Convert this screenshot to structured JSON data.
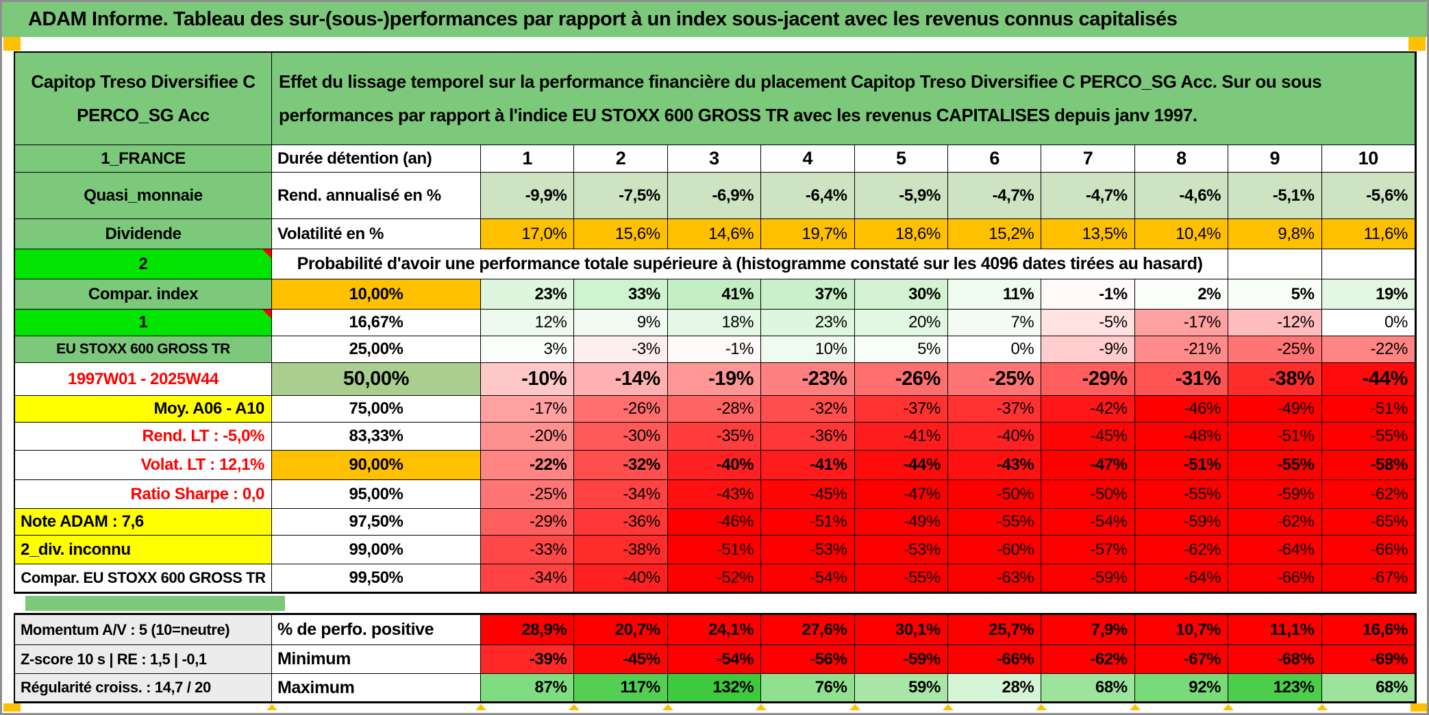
{
  "title": "ADAM Informe. Tableau des sur-(sous-)performances par rapport à un index sous-jacent avec les revenus connus capitalisés",
  "header": {
    "fund": "Capitop Treso Diversifiee C PERCO_SG Acc",
    "description": "Effet du lissage temporel sur la performance financière du placement Capitop Treso Diversifiee C PERCO_SG Acc. Sur ou sous performances par rapport à l'indice EU STOXX 600 GROSS TR avec les revenus CAPITALISES depuis janv 1997."
  },
  "columns": {
    "left_header": "1_FRANCE",
    "label": "Durée détention (an)",
    "years": [
      "1",
      "2",
      "3",
      "4",
      "5",
      "6",
      "7",
      "8",
      "9",
      "10"
    ]
  },
  "rows": [
    {
      "id": "rend",
      "left": "Quasi_monnaie",
      "label": "Rend. annualisé en %",
      "values": [
        "-9,9%",
        "-7,5%",
        "-6,9%",
        "-6,4%",
        "-5,9%",
        "-4,7%",
        "-4,7%",
        "-4,6%",
        "-5,1%",
        "-5,6%"
      ]
    },
    {
      "id": "volat",
      "left": "Dividende",
      "label": "Volatilité en %",
      "values": [
        "17,0%",
        "15,6%",
        "14,6%",
        "19,7%",
        "18,6%",
        "15,2%",
        "13,5%",
        "10,4%",
        "9,8%",
        "11,6%"
      ]
    },
    {
      "id": "proba",
      "left": "2",
      "label": "Probabilité d'avoir une performance totale supérieure à (histogramme constaté sur les 4096 dates tirées au hasard)",
      "values": []
    },
    {
      "id": "p10",
      "left": "Compar. index",
      "label": "10,00%",
      "values": [
        "23%",
        "33%",
        "41%",
        "37%",
        "30%",
        "11%",
        "-1%",
        "2%",
        "5%",
        "19%"
      ]
    },
    {
      "id": "p16",
      "left": "1",
      "label": "16,67%",
      "values": [
        "12%",
        "9%",
        "18%",
        "23%",
        "20%",
        "7%",
        "-5%",
        "-17%",
        "-12%",
        "0%"
      ]
    },
    {
      "id": "p25",
      "left": "EU STOXX 600 GROSS TR",
      "label": "25,00%",
      "values": [
        "3%",
        "-3%",
        "-1%",
        "10%",
        "5%",
        "0%",
        "-9%",
        "-21%",
        "-25%",
        "-22%"
      ]
    },
    {
      "id": "p50",
      "left": "1997W01 - 2025W44",
      "label": "50,00%",
      "values": [
        "-10%",
        "-14%",
        "-19%",
        "-23%",
        "-26%",
        "-25%",
        "-29%",
        "-31%",
        "-38%",
        "-44%"
      ]
    },
    {
      "id": "p75",
      "left": "Moy. A06 - A10",
      "label": "75,00%",
      "values": [
        "-17%",
        "-26%",
        "-28%",
        "-32%",
        "-37%",
        "-37%",
        "-42%",
        "-46%",
        "-49%",
        "-51%"
      ]
    },
    {
      "id": "p83",
      "left": "Rend. LT :   -5,0%",
      "label": "83,33%",
      "values": [
        "-20%",
        "-30%",
        "-35%",
        "-36%",
        "-41%",
        "-40%",
        "-45%",
        "-48%",
        "-51%",
        "-55%"
      ]
    },
    {
      "id": "p90",
      "left": "Volat. LT :   12,1%",
      "label": "90,00%",
      "values": [
        "-22%",
        "-32%",
        "-40%",
        "-41%",
        "-44%",
        "-43%",
        "-47%",
        "-51%",
        "-55%",
        "-58%"
      ]
    },
    {
      "id": "p95",
      "left": "Ratio Sharpe :   0,0",
      "label": "95,00%",
      "values": [
        "-25%",
        "-34%",
        "-43%",
        "-45%",
        "-47%",
        "-50%",
        "-50%",
        "-55%",
        "-59%",
        "-62%"
      ]
    },
    {
      "id": "p975",
      "left": "Note ADAM : 7,6",
      "label": "97,50%",
      "values": [
        "-29%",
        "-36%",
        "-46%",
        "-51%",
        "-49%",
        "-55%",
        "-54%",
        "-59%",
        "-62%",
        "-65%"
      ]
    },
    {
      "id": "p99",
      "left": "2_div. inconnu",
      "label": "99,00%",
      "values": [
        "-33%",
        "-38%",
        "-51%",
        "-53%",
        "-53%",
        "-60%",
        "-57%",
        "-62%",
        "-64%",
        "-66%"
      ]
    },
    {
      "id": "p995",
      "left": "Compar. EU STOXX 600 GROSS TR",
      "label": "99,50%",
      "values": [
        "-34%",
        "-40%",
        "-52%",
        "-54%",
        "-55%",
        "-63%",
        "-59%",
        "-64%",
        "-66%",
        "-67%"
      ]
    }
  ],
  "bottom_rows": [
    {
      "id": "perfo",
      "left": "Momentum A/V : 5 (10=neutre)",
      "label": "% de perfo. positive",
      "values": [
        "28,9%",
        "20,7%",
        "24,1%",
        "27,6%",
        "30,1%",
        "25,7%",
        "7,9%",
        "10,7%",
        "11,1%",
        "16,6%"
      ]
    },
    {
      "id": "min",
      "left": "Z-score 10 s | RE : 1,5 | -0,1",
      "label": "Minimum",
      "values": [
        "-39%",
        "-45%",
        "-54%",
        "-56%",
        "-59%",
        "-66%",
        "-62%",
        "-67%",
        "-68%",
        "-69%"
      ]
    },
    {
      "id": "max",
      "left": "Régularité croiss. : 14,7 / 20",
      "label": "Maximum",
      "values": [
        "87%",
        "117%",
        "132%",
        "76%",
        "59%",
        "28%",
        "68%",
        "92%",
        "123%",
        "68%"
      ]
    }
  ],
  "colors": {
    "green_header": "#7cc97c",
    "bright_green": "#00e400",
    "orange": "#ffc000",
    "yellow": "#ffff00",
    "pale_green": "#cde3c2",
    "prob_green_50": "#a9ce8e",
    "gray_label": "#ececec",
    "red": "#ff0000",
    "pos_green_target": "#3ac83a"
  }
}
